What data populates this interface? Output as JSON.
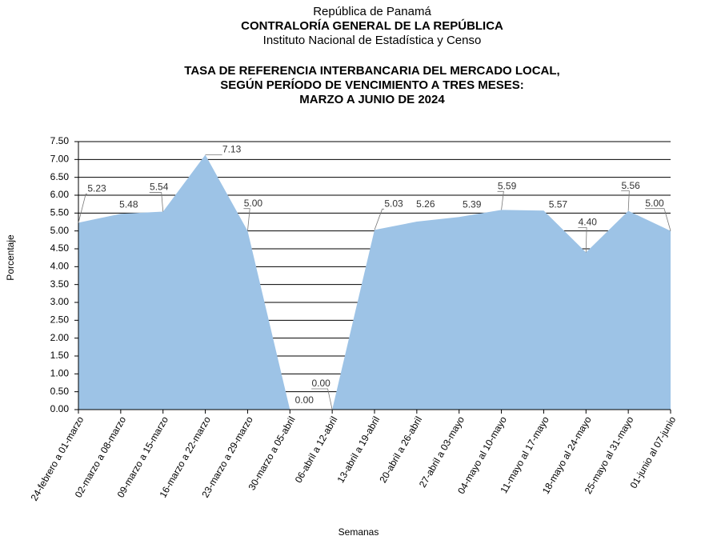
{
  "header": {
    "line1": "República de Panamá",
    "line2": "CONTRALORÍA GENERAL DE LA REPÚBLICA",
    "line3": "Instituto  Nacional de Estadística  y Censo"
  },
  "chart_data": {
    "type": "area",
    "title": [
      "TASA DE REFERENCIA INTERBANCARIA DEL MERCADO LOCAL,",
      "SEGÚN PERÍODO DE VENCIMIENTO A TRES MESES:",
      "MARZO  A JUNIO DE 2024"
    ],
    "x_label": "Semanas",
    "y_label": "Porcentaje",
    "categories": [
      "24-febrero a 01-marzo",
      "02-marzo a 08-marzo",
      "09-marzo a 15-marzo",
      "16-marzo a 22-marzo",
      "23-marzo a 29-marzo",
      "30-marzo a 05-abril",
      "06-abril a 12-abril",
      "13-abril a 19-abril",
      "20-abril a 26-abril",
      "27-abril a 03-mayo",
      "04-mayo al 10-mayo",
      "11-mayo al 17-mayo",
      "18-mayo al 24-mayo",
      "25-mayo al 31-mayo",
      "01-junio al 07-junio"
    ],
    "values": [
      5.23,
      5.48,
      5.54,
      7.13,
      5.0,
      0.0,
      0.0,
      5.03,
      5.26,
      5.39,
      5.59,
      5.57,
      4.4,
      5.56,
      5.0
    ],
    "value_labels": [
      "5.23",
      "5.48",
      "5.54",
      "7.13",
      "5.00",
      "0.00",
      "0.00",
      "5.03",
      "5.26",
      "5.39",
      "5.59",
      "5.57",
      "4.40",
      "5.56",
      "5.00"
    ],
    "color": "#9dc3e6",
    "ylim": [
      0,
      7.5
    ],
    "yticks": [
      {
        "value": 0,
        "label": "0.00"
      },
      {
        "value": 0.5,
        "label": "0.50"
      },
      {
        "value": 1,
        "label": "1.00"
      },
      {
        "value": 1.5,
        "label": "1.50"
      },
      {
        "value": 2,
        "label": "2.00"
      },
      {
        "value": 2.5,
        "label": "2.50"
      },
      {
        "value": 3,
        "label": "3.00"
      },
      {
        "value": 3.5,
        "label": "3.50"
      },
      {
        "value": 4,
        "label": "4.00"
      },
      {
        "value": 4.5,
        "label": "4.50"
      },
      {
        "value": 5,
        "label": "5.00"
      },
      {
        "value": 5.5,
        "label": "5.50"
      },
      {
        "value": 6,
        "label": "6.00"
      },
      {
        "value": 6.5,
        "label": "6.50"
      },
      {
        "value": 7,
        "label": "7.00"
      },
      {
        "value": 7.5,
        "label": "7.50"
      }
    ],
    "grid": true
  }
}
